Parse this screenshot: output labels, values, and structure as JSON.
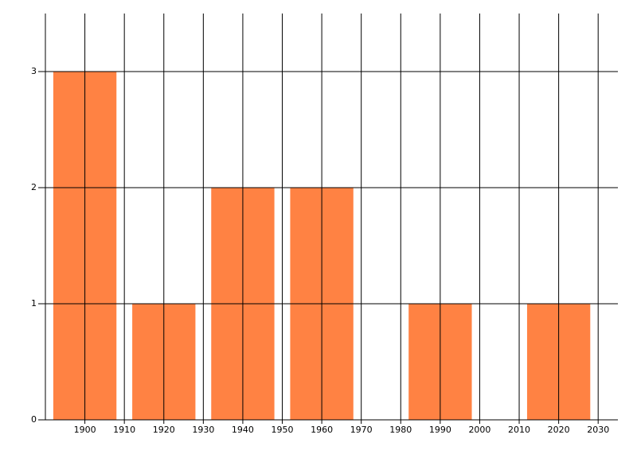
{
  "chart_data": {
    "type": "bar",
    "x": [
      1900,
      1920,
      1940,
      1960,
      1990,
      2020
    ],
    "values": [
      3,
      1,
      2,
      2,
      1,
      1
    ],
    "color": "#ff8243",
    "xlim": [
      1890,
      2035
    ],
    "xticks": [
      1900,
      1910,
      1920,
      1930,
      1940,
      1950,
      1960,
      1970,
      1980,
      1990,
      2000,
      2010,
      2020,
      2030
    ],
    "ylim": [
      0,
      3.5
    ],
    "yticks": [
      0,
      1,
      2,
      3
    ],
    "grid": true
  }
}
